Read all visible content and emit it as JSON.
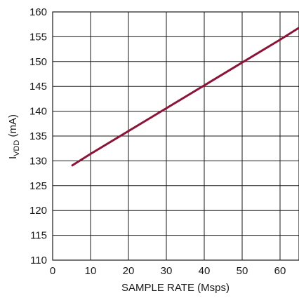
{
  "chart_data": {
    "type": "line",
    "title": "",
    "xlabel": "SAMPLE RATE (Msps)",
    "ylabel": {
      "main": "I",
      "subscript": "VDD",
      "unit": " (mA)"
    },
    "xlim": [
      0,
      65
    ],
    "ylim": [
      110,
      160
    ],
    "x_ticks": [
      0,
      10,
      20,
      30,
      40,
      50,
      60
    ],
    "y_ticks": [
      110,
      115,
      120,
      125,
      130,
      135,
      140,
      145,
      150,
      155,
      160
    ],
    "x_tick_labels": [
      "0",
      "10",
      "20",
      "30",
      "40",
      "50",
      "60"
    ],
    "y_tick_labels": [
      "110",
      "115",
      "120",
      "125",
      "130",
      "135",
      "140",
      "145",
      "150",
      "155",
      "160"
    ],
    "grid": true,
    "line_color": "#8b1538",
    "series": [
      {
        "x": [
          5,
          10,
          20,
          30,
          40,
          50,
          60,
          65
        ],
        "y": [
          129,
          131.4,
          136.0,
          140.6,
          145.2,
          149.8,
          154.4,
          156.8
        ]
      }
    ]
  }
}
